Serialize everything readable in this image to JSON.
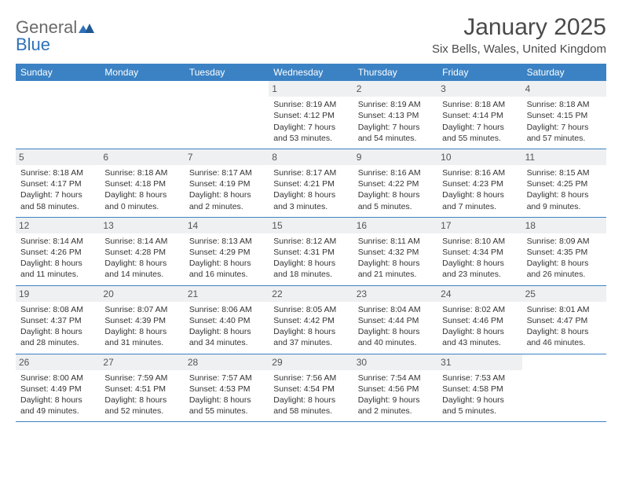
{
  "brand": {
    "part1": "General",
    "part2": "Blue"
  },
  "title": "January 2025",
  "location": "Six Bells, Wales, United Kingdom",
  "colors": {
    "header_bg": "#3b82c4",
    "header_text": "#ffffff",
    "daynum_bg": "#eef0f2",
    "row_border": "#3b82c4",
    "logo_gray": "#6a6a6a",
    "logo_blue": "#2d72b8",
    "text": "#333333"
  },
  "weekdays": [
    "Sunday",
    "Monday",
    "Tuesday",
    "Wednesday",
    "Thursday",
    "Friday",
    "Saturday"
  ],
  "weeks": [
    [
      {
        "empty": true
      },
      {
        "empty": true
      },
      {
        "empty": true
      },
      {
        "day": "1",
        "sunrise": "Sunrise: 8:19 AM",
        "sunset": "Sunset: 4:12 PM",
        "dl1": "Daylight: 7 hours",
        "dl2": "and 53 minutes."
      },
      {
        "day": "2",
        "sunrise": "Sunrise: 8:19 AM",
        "sunset": "Sunset: 4:13 PM",
        "dl1": "Daylight: 7 hours",
        "dl2": "and 54 minutes."
      },
      {
        "day": "3",
        "sunrise": "Sunrise: 8:18 AM",
        "sunset": "Sunset: 4:14 PM",
        "dl1": "Daylight: 7 hours",
        "dl2": "and 55 minutes."
      },
      {
        "day": "4",
        "sunrise": "Sunrise: 8:18 AM",
        "sunset": "Sunset: 4:15 PM",
        "dl1": "Daylight: 7 hours",
        "dl2": "and 57 minutes."
      }
    ],
    [
      {
        "day": "5",
        "sunrise": "Sunrise: 8:18 AM",
        "sunset": "Sunset: 4:17 PM",
        "dl1": "Daylight: 7 hours",
        "dl2": "and 58 minutes."
      },
      {
        "day": "6",
        "sunrise": "Sunrise: 8:18 AM",
        "sunset": "Sunset: 4:18 PM",
        "dl1": "Daylight: 8 hours",
        "dl2": "and 0 minutes."
      },
      {
        "day": "7",
        "sunrise": "Sunrise: 8:17 AM",
        "sunset": "Sunset: 4:19 PM",
        "dl1": "Daylight: 8 hours",
        "dl2": "and 2 minutes."
      },
      {
        "day": "8",
        "sunrise": "Sunrise: 8:17 AM",
        "sunset": "Sunset: 4:21 PM",
        "dl1": "Daylight: 8 hours",
        "dl2": "and 3 minutes."
      },
      {
        "day": "9",
        "sunrise": "Sunrise: 8:16 AM",
        "sunset": "Sunset: 4:22 PM",
        "dl1": "Daylight: 8 hours",
        "dl2": "and 5 minutes."
      },
      {
        "day": "10",
        "sunrise": "Sunrise: 8:16 AM",
        "sunset": "Sunset: 4:23 PM",
        "dl1": "Daylight: 8 hours",
        "dl2": "and 7 minutes."
      },
      {
        "day": "11",
        "sunrise": "Sunrise: 8:15 AM",
        "sunset": "Sunset: 4:25 PM",
        "dl1": "Daylight: 8 hours",
        "dl2": "and 9 minutes."
      }
    ],
    [
      {
        "day": "12",
        "sunrise": "Sunrise: 8:14 AM",
        "sunset": "Sunset: 4:26 PM",
        "dl1": "Daylight: 8 hours",
        "dl2": "and 11 minutes."
      },
      {
        "day": "13",
        "sunrise": "Sunrise: 8:14 AM",
        "sunset": "Sunset: 4:28 PM",
        "dl1": "Daylight: 8 hours",
        "dl2": "and 14 minutes."
      },
      {
        "day": "14",
        "sunrise": "Sunrise: 8:13 AM",
        "sunset": "Sunset: 4:29 PM",
        "dl1": "Daylight: 8 hours",
        "dl2": "and 16 minutes."
      },
      {
        "day": "15",
        "sunrise": "Sunrise: 8:12 AM",
        "sunset": "Sunset: 4:31 PM",
        "dl1": "Daylight: 8 hours",
        "dl2": "and 18 minutes."
      },
      {
        "day": "16",
        "sunrise": "Sunrise: 8:11 AM",
        "sunset": "Sunset: 4:32 PM",
        "dl1": "Daylight: 8 hours",
        "dl2": "and 21 minutes."
      },
      {
        "day": "17",
        "sunrise": "Sunrise: 8:10 AM",
        "sunset": "Sunset: 4:34 PM",
        "dl1": "Daylight: 8 hours",
        "dl2": "and 23 minutes."
      },
      {
        "day": "18",
        "sunrise": "Sunrise: 8:09 AM",
        "sunset": "Sunset: 4:35 PM",
        "dl1": "Daylight: 8 hours",
        "dl2": "and 26 minutes."
      }
    ],
    [
      {
        "day": "19",
        "sunrise": "Sunrise: 8:08 AM",
        "sunset": "Sunset: 4:37 PM",
        "dl1": "Daylight: 8 hours",
        "dl2": "and 28 minutes."
      },
      {
        "day": "20",
        "sunrise": "Sunrise: 8:07 AM",
        "sunset": "Sunset: 4:39 PM",
        "dl1": "Daylight: 8 hours",
        "dl2": "and 31 minutes."
      },
      {
        "day": "21",
        "sunrise": "Sunrise: 8:06 AM",
        "sunset": "Sunset: 4:40 PM",
        "dl1": "Daylight: 8 hours",
        "dl2": "and 34 minutes."
      },
      {
        "day": "22",
        "sunrise": "Sunrise: 8:05 AM",
        "sunset": "Sunset: 4:42 PM",
        "dl1": "Daylight: 8 hours",
        "dl2": "and 37 minutes."
      },
      {
        "day": "23",
        "sunrise": "Sunrise: 8:04 AM",
        "sunset": "Sunset: 4:44 PM",
        "dl1": "Daylight: 8 hours",
        "dl2": "and 40 minutes."
      },
      {
        "day": "24",
        "sunrise": "Sunrise: 8:02 AM",
        "sunset": "Sunset: 4:46 PM",
        "dl1": "Daylight: 8 hours",
        "dl2": "and 43 minutes."
      },
      {
        "day": "25",
        "sunrise": "Sunrise: 8:01 AM",
        "sunset": "Sunset: 4:47 PM",
        "dl1": "Daylight: 8 hours",
        "dl2": "and 46 minutes."
      }
    ],
    [
      {
        "day": "26",
        "sunrise": "Sunrise: 8:00 AM",
        "sunset": "Sunset: 4:49 PM",
        "dl1": "Daylight: 8 hours",
        "dl2": "and 49 minutes."
      },
      {
        "day": "27",
        "sunrise": "Sunrise: 7:59 AM",
        "sunset": "Sunset: 4:51 PM",
        "dl1": "Daylight: 8 hours",
        "dl2": "and 52 minutes."
      },
      {
        "day": "28",
        "sunrise": "Sunrise: 7:57 AM",
        "sunset": "Sunset: 4:53 PM",
        "dl1": "Daylight: 8 hours",
        "dl2": "and 55 minutes."
      },
      {
        "day": "29",
        "sunrise": "Sunrise: 7:56 AM",
        "sunset": "Sunset: 4:54 PM",
        "dl1": "Daylight: 8 hours",
        "dl2": "and 58 minutes."
      },
      {
        "day": "30",
        "sunrise": "Sunrise: 7:54 AM",
        "sunset": "Sunset: 4:56 PM",
        "dl1": "Daylight: 9 hours",
        "dl2": "and 2 minutes."
      },
      {
        "day": "31",
        "sunrise": "Sunrise: 7:53 AM",
        "sunset": "Sunset: 4:58 PM",
        "dl1": "Daylight: 9 hours",
        "dl2": "and 5 minutes."
      },
      {
        "empty": true
      }
    ]
  ]
}
